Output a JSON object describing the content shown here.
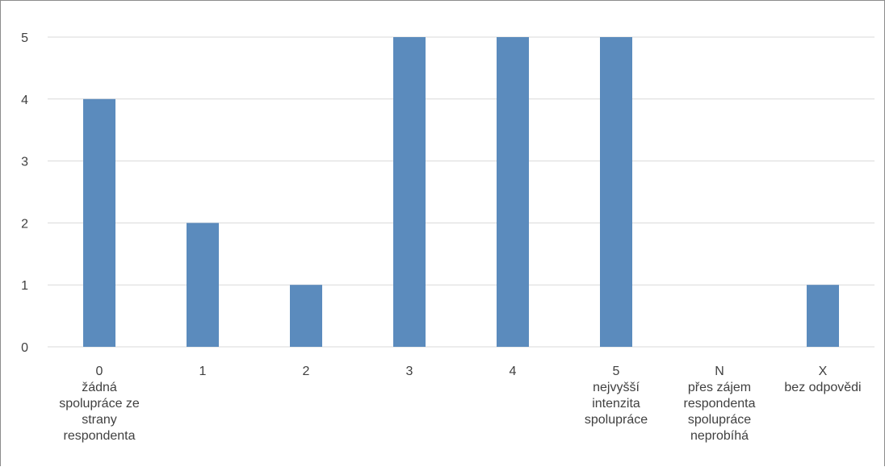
{
  "chart_data": {
    "type": "bar",
    "title": "",
    "xlabel": "",
    "ylabel": "",
    "ylim": [
      0,
      5
    ],
    "yticks": [
      "0",
      "1",
      "2",
      "3",
      "4",
      "5"
    ],
    "grid": true,
    "legend": "none",
    "bar_color": "#5b8bbd",
    "categories": [
      {
        "code": "0",
        "lines": [
          "0",
          "žádná",
          "spolupráce ze",
          "strany",
          "respondenta"
        ]
      },
      {
        "code": "1",
        "lines": [
          "1"
        ]
      },
      {
        "code": "2",
        "lines": [
          "2"
        ]
      },
      {
        "code": "3",
        "lines": [
          "3"
        ]
      },
      {
        "code": "4",
        "lines": [
          "4"
        ]
      },
      {
        "code": "5",
        "lines": [
          "5",
          "nejvyšší",
          "intenzita",
          "spolupráce"
        ]
      },
      {
        "code": "N",
        "lines": [
          "N",
          "přes zájem",
          "respondenta",
          "spolupráce",
          "neprobíhá"
        ]
      },
      {
        "code": "X",
        "lines": [
          "X",
          "bez odpovědi"
        ]
      }
    ],
    "values": [
      4,
      2,
      1,
      5,
      5,
      5,
      0,
      1
    ]
  }
}
